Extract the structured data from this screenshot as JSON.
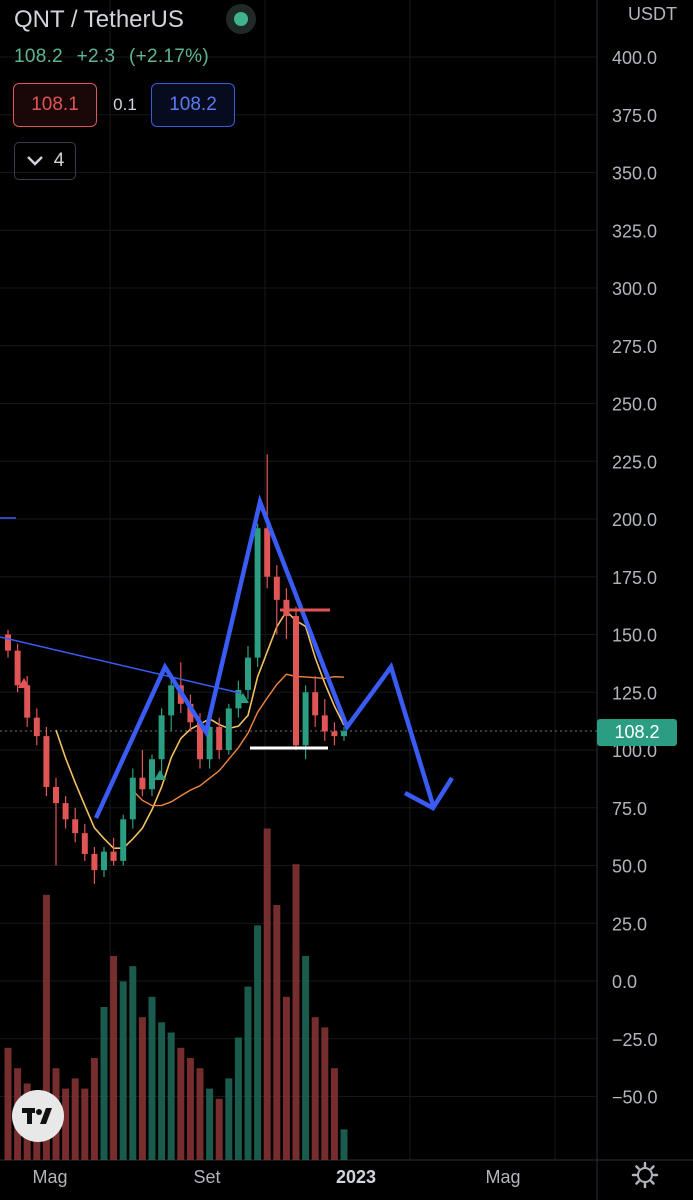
{
  "header": {
    "symbol": "QNT / TetherUS",
    "last": "108.2",
    "change": "+2.3",
    "change_pct": "(+2.17%)",
    "bid": "108.1",
    "spread": "0.1",
    "ask": "108.2",
    "indicators_count": "4",
    "currency": "USDT"
  },
  "price_tag": "108.2",
  "colors": {
    "up": "#2a9d82",
    "down": "#e05555",
    "pattern": "#3a5cf5",
    "accent_live": "#3fb28f"
  },
  "chart_data": {
    "type": "candlestick",
    "y_ticks": [
      "400.0",
      "375.0",
      "350.0",
      "325.0",
      "300.0",
      "275.0",
      "250.0",
      "225.0",
      "200.0",
      "175.0",
      "150.0",
      "125.0",
      "100.0",
      "75.0",
      "50.0",
      "25.0",
      "0.0",
      "−25.0",
      "−50.0"
    ],
    "x_labels": [
      {
        "label": "Mag",
        "bold": false
      },
      {
        "label": "Set",
        "bold": false
      },
      {
        "label": "2023",
        "bold": true
      },
      {
        "label": "Mag",
        "bold": false
      }
    ],
    "ylim": [
      -75,
      410
    ],
    "candles": [
      {
        "o": 150,
        "h": 152,
        "l": 140,
        "c": 143
      },
      {
        "o": 143,
        "h": 146,
        "l": 125,
        "c": 128
      },
      {
        "o": 128,
        "h": 132,
        "l": 110,
        "c": 114
      },
      {
        "o": 114,
        "h": 118,
        "l": 102,
        "c": 106
      },
      {
        "o": 106,
        "h": 110,
        "l": 80,
        "c": 84
      },
      {
        "o": 84,
        "h": 88,
        "l": 50,
        "c": 77
      },
      {
        "o": 77,
        "h": 80,
        "l": 66,
        "c": 70
      },
      {
        "o": 70,
        "h": 75,
        "l": 60,
        "c": 64
      },
      {
        "o": 64,
        "h": 68,
        "l": 52,
        "c": 55
      },
      {
        "o": 55,
        "h": 58,
        "l": 42,
        "c": 48
      },
      {
        "o": 48,
        "h": 58,
        "l": 45,
        "c": 56
      },
      {
        "o": 56,
        "h": 62,
        "l": 50,
        "c": 52
      },
      {
        "o": 52,
        "h": 72,
        "l": 50,
        "c": 70
      },
      {
        "o": 70,
        "h": 92,
        "l": 66,
        "c": 88
      },
      {
        "o": 88,
        "h": 100,
        "l": 80,
        "c": 83
      },
      {
        "o": 83,
        "h": 98,
        "l": 80,
        "c": 96
      },
      {
        "o": 96,
        "h": 118,
        "l": 90,
        "c": 115
      },
      {
        "o": 115,
        "h": 132,
        "l": 108,
        "c": 128
      },
      {
        "o": 128,
        "h": 138,
        "l": 116,
        "c": 120
      },
      {
        "o": 120,
        "h": 124,
        "l": 108,
        "c": 112
      },
      {
        "o": 112,
        "h": 116,
        "l": 92,
        "c": 96
      },
      {
        "o": 96,
        "h": 112,
        "l": 92,
        "c": 110
      },
      {
        "o": 110,
        "h": 114,
        "l": 96,
        "c": 100
      },
      {
        "o": 100,
        "h": 120,
        "l": 98,
        "c": 118
      },
      {
        "o": 118,
        "h": 130,
        "l": 114,
        "c": 126
      },
      {
        "o": 126,
        "h": 145,
        "l": 122,
        "c": 140
      },
      {
        "o": 140,
        "h": 198,
        "l": 136,
        "c": 196
      },
      {
        "o": 196,
        "h": 228,
        "l": 170,
        "c": 175
      },
      {
        "o": 175,
        "h": 180,
        "l": 150,
        "c": 165
      },
      {
        "o": 165,
        "h": 170,
        "l": 148,
        "c": 158
      },
      {
        "o": 158,
        "h": 162,
        "l": 100,
        "c": 102
      },
      {
        "o": 102,
        "h": 128,
        "l": 96,
        "c": 125
      },
      {
        "o": 125,
        "h": 132,
        "l": 110,
        "c": 115
      },
      {
        "o": 115,
        "h": 122,
        "l": 104,
        "c": 108
      },
      {
        "o": 108,
        "h": 112,
        "l": 102,
        "c": 106
      },
      {
        "o": 106,
        "h": 110,
        "l": 104,
        "c": 108.2
      }
    ],
    "volumes": [
      22,
      18,
      15,
      12,
      52,
      18,
      14,
      16,
      14,
      20,
      30,
      40,
      35,
      38,
      28,
      32,
      27,
      25,
      22,
      20,
      18,
      14,
      12,
      16,
      24,
      34,
      46,
      65,
      50,
      32,
      58,
      40,
      28,
      26,
      18,
      6
    ],
    "series": [
      {
        "name": "sma_fast",
        "color": "#f0c060"
      },
      {
        "name": "sma_slow",
        "color": "#f0883e"
      }
    ]
  }
}
